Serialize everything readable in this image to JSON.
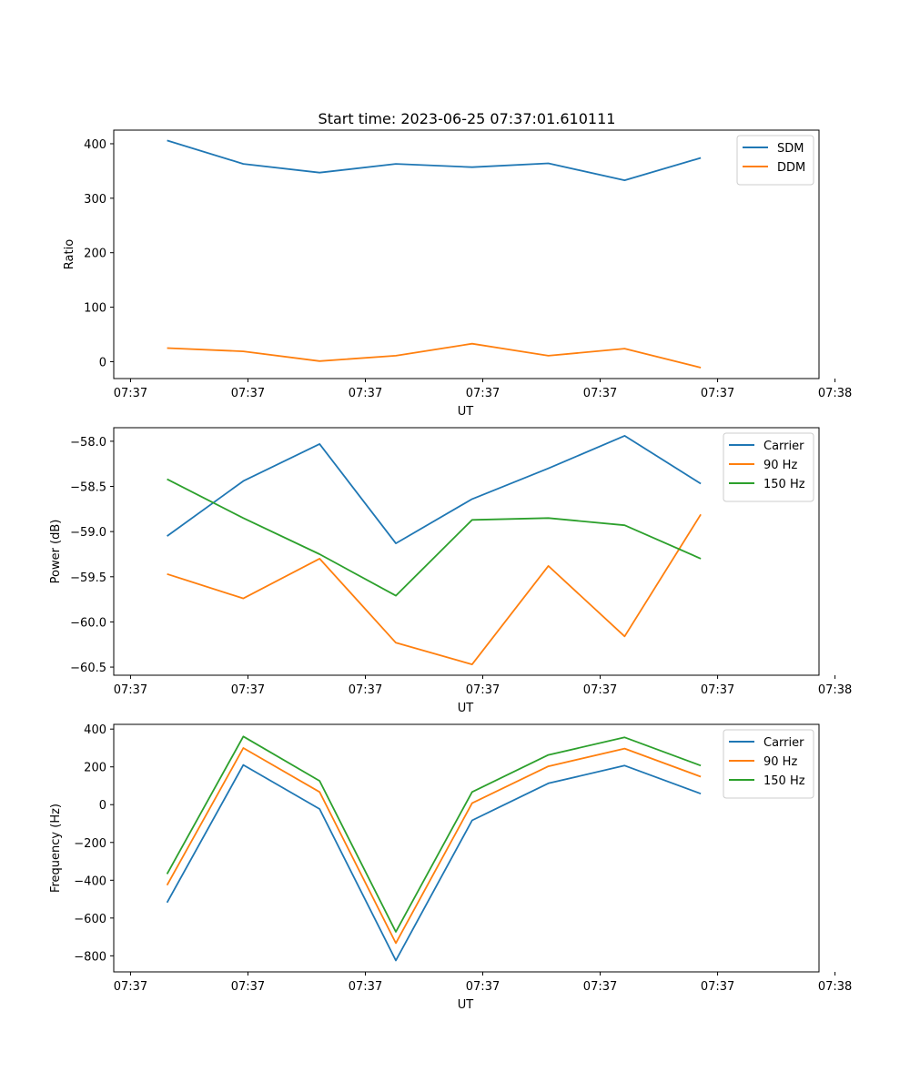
{
  "chart_data": [
    {
      "type": "line",
      "title": "Start time: 2023-06-25 07:37:01.610111",
      "xlabel": "UT",
      "ylabel": "Ratio",
      "x": [
        1,
        2,
        3,
        4,
        5,
        6,
        7,
        8
      ],
      "xlim": [
        0.3,
        9.55
      ],
      "x_ticks": [
        0.52,
        2.06,
        3.6,
        5.14,
        6.68,
        8.22,
        9.76
      ],
      "x_tick_labels": [
        "07:37",
        "07:37",
        "07:37",
        "07:37",
        "07:37",
        "07:37",
        "07:38"
      ],
      "ylim": [
        -31,
        425
      ],
      "y_ticks": [
        0,
        100,
        200,
        300,
        400
      ],
      "y_tick_labels": [
        "0",
        "100",
        "200",
        "300",
        "400"
      ],
      "grid": false,
      "legend": "upper right",
      "series": [
        {
          "name": "SDM",
          "color": "#1f77b4",
          "values": [
            406,
            363,
            347,
            363,
            357,
            364,
            333,
            374
          ]
        },
        {
          "name": "DDM",
          "color": "#ff7f0e",
          "values": [
            25,
            19,
            1,
            11,
            33,
            11,
            24,
            -11
          ]
        }
      ]
    },
    {
      "type": "line",
      "title": "",
      "xlabel": "UT",
      "ylabel": "Power (dB)",
      "x": [
        1,
        2,
        3,
        4,
        5,
        6,
        7,
        8
      ],
      "xlim": [
        0.3,
        9.55
      ],
      "x_ticks": [
        0.52,
        2.06,
        3.6,
        5.14,
        6.68,
        8.22,
        9.76
      ],
      "x_tick_labels": [
        "07:37",
        "07:37",
        "07:37",
        "07:37",
        "07:37",
        "07:37",
        "07:38"
      ],
      "ylim": [
        -60.59,
        -57.85
      ],
      "y_ticks": [
        -58.0,
        -58.5,
        -59.0,
        -59.5,
        -60.0,
        -60.5
      ],
      "y_tick_labels": [
        "−58.0",
        "−58.5",
        "−59.0",
        "−59.5",
        "−60.0",
        "−60.5"
      ],
      "grid": false,
      "legend": "upper right",
      "series": [
        {
          "name": "Carrier",
          "color": "#1f77b4",
          "values": [
            -59.05,
            -58.44,
            -58.03,
            -59.13,
            -58.64,
            -58.3,
            -57.94,
            -58.47
          ]
        },
        {
          "name": "90 Hz",
          "color": "#ff7f0e",
          "values": [
            -59.47,
            -59.74,
            -59.3,
            -60.23,
            -60.47,
            -59.38,
            -60.16,
            -58.81
          ]
        },
        {
          "name": "150 Hz",
          "color": "#2ca02c",
          "values": [
            -58.42,
            -58.85,
            -59.25,
            -59.71,
            -58.87,
            -58.85,
            -58.93,
            -59.3
          ]
        }
      ]
    },
    {
      "type": "line",
      "title": "",
      "xlabel": "UT",
      "ylabel": "Frequency (Hz)",
      "x": [
        1,
        2,
        3,
        4,
        5,
        6,
        7,
        8
      ],
      "xlim": [
        0.3,
        9.55
      ],
      "x_ticks": [
        0.52,
        2.06,
        3.6,
        5.14,
        6.68,
        8.22,
        9.76
      ],
      "x_tick_labels": [
        "07:37",
        "07:37",
        "07:37",
        "07:37",
        "07:37",
        "07:37",
        "07:38"
      ],
      "ylim": [
        -885,
        425
      ],
      "y_ticks": [
        400,
        200,
        0,
        -200,
        -400,
        -600,
        -800
      ],
      "y_tick_labels": [
        "400",
        "200",
        "0",
        "−200",
        "−400",
        "−600",
        "−800"
      ],
      "grid": false,
      "legend": "upper right",
      "series": [
        {
          "name": "Carrier",
          "color": "#1f77b4",
          "values": [
            -518,
            210,
            -23,
            -825,
            -83,
            113,
            207,
            58
          ]
        },
        {
          "name": "90 Hz",
          "color": "#ff7f0e",
          "values": [
            -426,
            300,
            67,
            -733,
            8,
            203,
            297,
            148
          ]
        },
        {
          "name": "150 Hz",
          "color": "#2ca02c",
          "values": [
            -367,
            361,
            126,
            -673,
            67,
            263,
            356,
            207
          ]
        }
      ]
    }
  ]
}
